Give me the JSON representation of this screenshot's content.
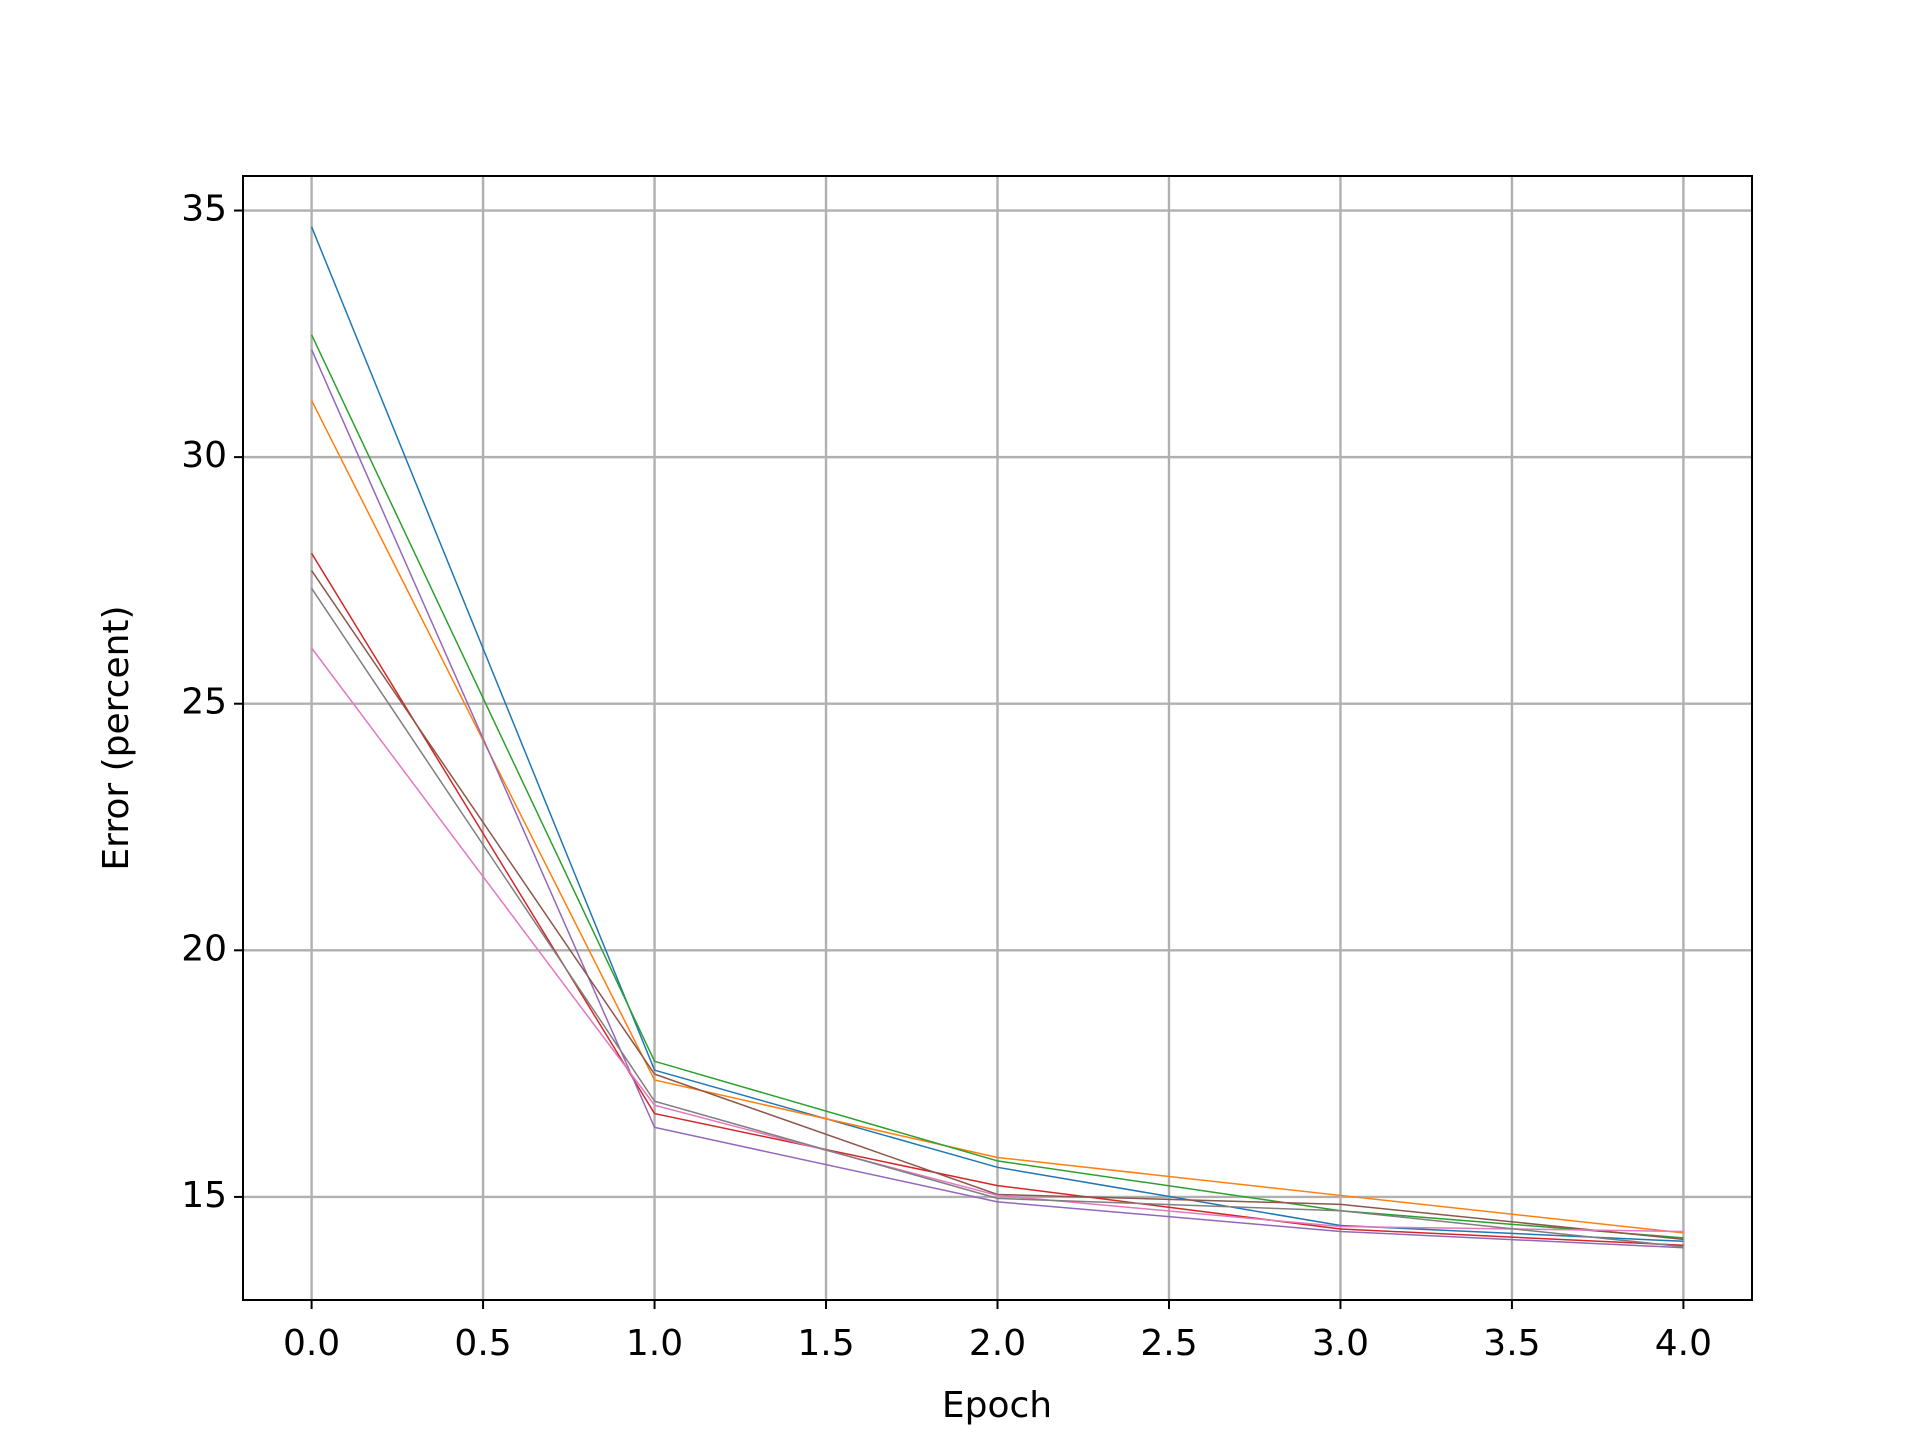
{
  "chart_data": {
    "type": "line",
    "xlabel": "Epoch",
    "ylabel": "Error (percent)",
    "x": [
      0,
      1,
      2,
      3,
      4
    ],
    "series": [
      {
        "color": "#1f77b4",
        "values": [
          34.67,
          17.57,
          15.6,
          14.42,
          14.1
        ]
      },
      {
        "color": "#ff7f0e",
        "values": [
          31.15,
          17.37,
          15.8,
          15.03,
          14.27
        ]
      },
      {
        "color": "#2ca02c",
        "values": [
          32.48,
          17.75,
          15.73,
          14.72,
          14.17
        ]
      },
      {
        "color": "#d62728",
        "values": [
          28.05,
          16.69,
          15.23,
          14.35,
          14.02
        ]
      },
      {
        "color": "#9467bd",
        "values": [
          32.18,
          16.41,
          14.9,
          14.3,
          13.97
        ]
      },
      {
        "color": "#8c564b",
        "values": [
          27.7,
          17.49,
          15.05,
          14.85,
          14.14
        ]
      },
      {
        "color": "#e377c2",
        "values": [
          26.13,
          16.86,
          15.03,
          14.4,
          14.3
        ]
      },
      {
        "color": "#7f7f7f",
        "values": [
          27.34,
          16.94,
          14.97,
          14.72,
          13.99
        ]
      }
    ],
    "xlim": [
      -0.2,
      4.2
    ],
    "xticks": [
      {
        "value": 0,
        "label": "0.0"
      },
      0.5,
      {
        "value": 1,
        "label": "1.0"
      },
      1.5,
      {
        "value": 2,
        "label": "2.0"
      },
      2.5,
      {
        "value": 3,
        "label": "3.0"
      },
      3.5,
      {
        "value": 4,
        "label": "4.0"
      }
    ],
    "ylim": [
      12.91,
      35.7
    ],
    "yticks": [
      15,
      20,
      25,
      30,
      35
    ],
    "grid": true
  }
}
